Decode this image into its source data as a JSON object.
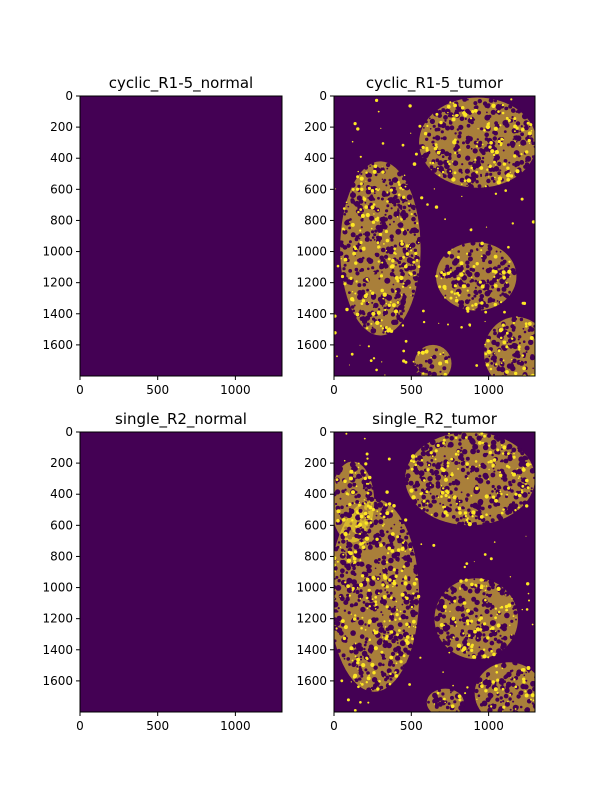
{
  "chart_data": [
    {
      "type": "heatmap",
      "title": "cyclic_R1-5_normal",
      "image_width": 1300,
      "image_height": 1800,
      "xticks": [
        0,
        500,
        1000
      ],
      "yticks": [
        0,
        200,
        400,
        600,
        800,
        1000,
        1200,
        1400,
        1600
      ],
      "colormap": "viridis",
      "mask": "all-zero",
      "background_color": "#440154",
      "foreground_color": "#fde725"
    },
    {
      "type": "heatmap",
      "title": "cyclic_R1-5_tumor",
      "image_width": 1300,
      "image_height": 1800,
      "xticks": [
        0,
        500,
        1000
      ],
      "yticks": [
        0,
        200,
        400,
        600,
        800,
        1000,
        1200,
        1400,
        1600
      ],
      "colormap": "viridis",
      "mask": "binary segmentation (tumor regions)",
      "background_color": "#440154",
      "foreground_color": "#fde725"
    },
    {
      "type": "heatmap",
      "title": "single_R2_normal",
      "image_width": 1300,
      "image_height": 1800,
      "xticks": [
        0,
        500,
        1000
      ],
      "yticks": [
        0,
        200,
        400,
        600,
        800,
        1000,
        1200,
        1400,
        1600
      ],
      "colormap": "viridis",
      "mask": "all-zero",
      "background_color": "#440154",
      "foreground_color": "#fde725"
    },
    {
      "type": "heatmap",
      "title": "single_R2_tumor",
      "image_width": 1300,
      "image_height": 1800,
      "xticks": [
        0,
        500,
        1000
      ],
      "yticks": [
        0,
        200,
        400,
        600,
        800,
        1000,
        1200,
        1400,
        1600
      ],
      "colormap": "viridis",
      "mask": "binary segmentation (tumor regions)",
      "background_color": "#440154",
      "foreground_color": "#fde725"
    }
  ]
}
